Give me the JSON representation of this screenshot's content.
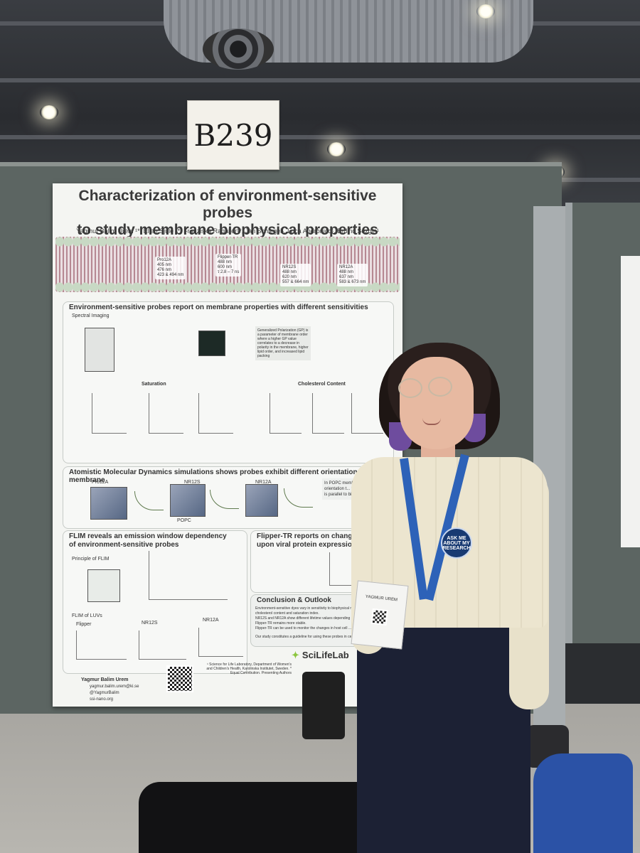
{
  "booth": {
    "number": "B239"
  },
  "poster": {
    "title_line1": "Characterization of environment-sensitive probes",
    "title_line2": "to study membrane biophysical properties",
    "authors": "Yagmur Balim Urem ¹*, Ellen Sjule ¹*, Franziska Ragaller¹*, Jan Schlegel¹, Luca Andronico¹, Erdinc Sezgin¹",
    "probes": [
      {
        "name": "Pro12A",
        "ex": "405 nm",
        "em": "476 nm",
        "em2": "423 & 494 nm"
      },
      {
        "name": "Flipper-TR",
        "ex": "488 nm",
        "em": "600 nm",
        "em2": "τ 2.8 – 7 ns"
      },
      {
        "name": "NR12S",
        "ex": "488 nm",
        "em": "620 nm",
        "em2": "557 & 664 nm"
      },
      {
        "name": "NR12A",
        "ex": "488 nm",
        "em": "637 nm",
        "em2": "583 & 673 nm"
      }
    ],
    "section1_title": "Environment-sensitive probes report on membrane properties with different sensitivities",
    "section1_sub": "Spectral Imaging",
    "saturation_label": "Saturation",
    "cholesterol_label": "Cholesterol Content",
    "gp_text": "Generalized Polarization (GP) is a parameter of membrane order where a higher GP value correlates to a decrease in polarity in the membrane, higher lipid order, and increased lipid packing",
    "section2_title": "Atomistic Molecular Dynamics simulations shows probes exhibit different orientations in the membrane",
    "md_labels": [
      "Pro12A",
      "NR12S",
      "NR12A"
    ],
    "md_lipid": "POPC",
    "md_note": "In POPC membranes, Pr... show an orientation t... to the bilayer where... is parallel to bilaye...",
    "section3_title": "FLIM reveals an emission window dependency of environment-sensitive probes",
    "flim_principle": "Principle of FLIM",
    "flim_luvs": "FLIM of LUVs",
    "flim_probes": [
      "Flipper",
      "NR12S",
      "NR12A"
    ],
    "section4_title": "Flipper-TR reports on changes in m... upon viral protein expression",
    "conclusion_title": "Conclusion & Outlook",
    "conclusion_points": [
      "Environment-sensitive dyes vary in sensitivity to biophysical membrane ... as cholesterol content and saturation index.",
      "NR12S and NR12A show different lifetime values depending on the ... window, while Flipper-TR remains more stable.",
      "Flipper-TR can be used to monitor the changes in host cell ... protein expression.",
      "Our study constitutes a guideline for using these probes in cellular ..."
    ],
    "logo": "SciLifeLab",
    "contact_name": "Yagmur Balim Urem",
    "contact_email": "yagmur.balim.urem@ki.se",
    "contact_handle": "@YagmurBalim",
    "contact_site": "ssi-nano.org",
    "affiliations": "¹ Science for Life Laboratory, Department of Women's and Children's Health, Karolinska Institutet, Sweden. * Equal Contribution. Presenting Authors"
  },
  "person": {
    "badge_name": "YAGMUR UREM",
    "pin_text": "ASK ME ABOUT MY RESEARCH"
  },
  "colors": {
    "board": "#5c6562",
    "lanyard": "#2d62b8",
    "accent_green": "#8cc63f",
    "trousers": "#1c2134"
  }
}
